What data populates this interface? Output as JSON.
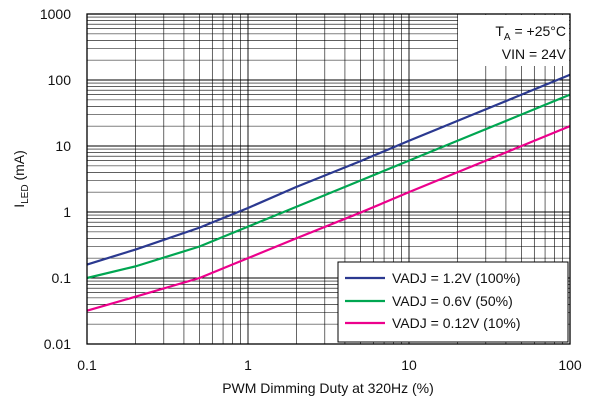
{
  "chart_data": {
    "type": "line",
    "xlabel": "PWM Dimming Duty at 320Hz (%)",
    "ylabel": {
      "main": "I",
      "sub": "LED",
      "unit": " (mA)"
    },
    "x_scale": "log",
    "y_scale": "log",
    "xlim": [
      0.1,
      100
    ],
    "ylim": [
      0.01,
      1000
    ],
    "x_ticks": [
      {
        "value": 0.1,
        "label": "0.1"
      },
      {
        "value": 1,
        "label": "1"
      },
      {
        "value": 10,
        "label": "10"
      },
      {
        "value": 100,
        "label": "100"
      }
    ],
    "y_ticks": [
      {
        "value": 1000,
        "label": "1000"
      },
      {
        "value": 100,
        "label": "100"
      },
      {
        "value": 10,
        "label": "10"
      },
      {
        "value": 1,
        "label": "1"
      },
      {
        "value": 0.1,
        "label": "0.1"
      },
      {
        "value": 0.01,
        "label": "0.01"
      }
    ],
    "grid": true,
    "conditions": {
      "ta_main": "T",
      "ta_sub": "A",
      "ta_value": " = +25°C",
      "vin": "VIN = 24V"
    },
    "legend_position": "bottom-right",
    "series": [
      {
        "name": "VADJ = 1.2V (100%)",
        "color": "#2b3990",
        "x": [
          0.1,
          0.2,
          0.5,
          1,
          2,
          5,
          10,
          20,
          50,
          100
        ],
        "y": [
          0.16,
          0.27,
          0.58,
          1.15,
          2.4,
          5.9,
          12,
          24,
          60,
          120
        ]
      },
      {
        "name": "VADJ = 0.6V (50%)",
        "color": "#00a651",
        "x": [
          0.1,
          0.2,
          0.5,
          1,
          2,
          5,
          10,
          20,
          50,
          100
        ],
        "y": [
          0.1,
          0.15,
          0.3,
          0.6,
          1.2,
          3,
          6,
          12,
          30,
          60
        ]
      },
      {
        "name": "VADJ = 0.12V (10%)",
        "color": "#ec008c",
        "x": [
          0.1,
          0.2,
          0.5,
          1,
          2,
          5,
          10,
          20,
          50,
          100
        ],
        "y": [
          0.032,
          0.052,
          0.1,
          0.2,
          0.4,
          0.98,
          2,
          4,
          10,
          20
        ]
      }
    ]
  }
}
